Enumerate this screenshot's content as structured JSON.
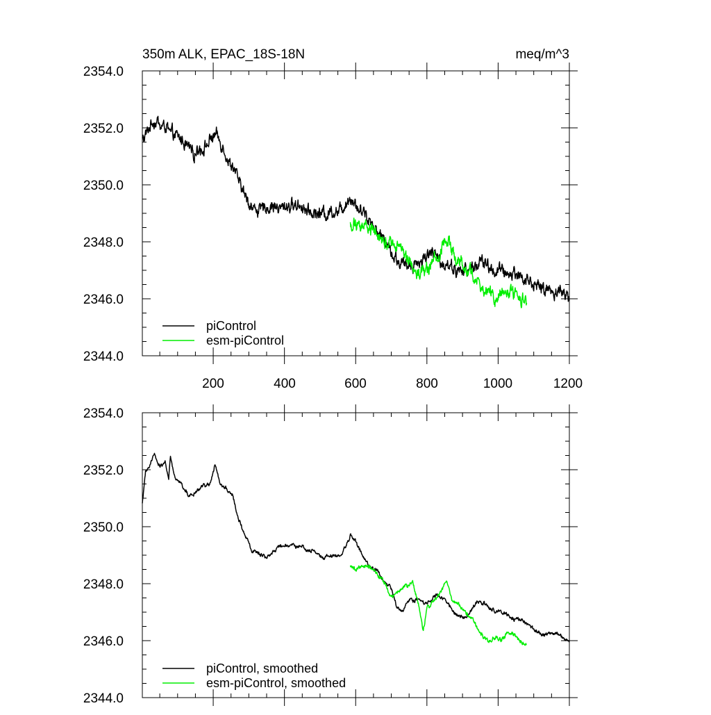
{
  "chart_data": [
    {
      "type": "line",
      "title": "350m ALK, EPAC_18S-18N",
      "units": "meq/m^3",
      "xlim": [
        1,
        1200
      ],
      "ylim": [
        2344,
        2354
      ],
      "xticks": [
        "200",
        "400",
        "600",
        "800",
        "1000",
        "1200"
      ],
      "yticks": [
        "2344.0",
        "2346.0",
        "2348.0",
        "2350.0",
        "2352.0",
        "2354.0"
      ],
      "legend_position": "bottom-left",
      "series": [
        {
          "name": "piControl",
          "color": "#000000",
          "x_start": 1,
          "x_end": 1200,
          "anchors": [
            [
              1,
              2351.6
            ],
            [
              15,
              2351.9
            ],
            [
              30,
              2352.2
            ],
            [
              60,
              2352.1
            ],
            [
              90,
              2351.7
            ],
            [
              120,
              2351.5
            ],
            [
              150,
              2351.2
            ],
            [
              180,
              2351.4
            ],
            [
              205,
              2351.7
            ],
            [
              230,
              2351.2
            ],
            [
              250,
              2350.6
            ],
            [
              265,
              2350.3
            ],
            [
              280,
              2349.9
            ],
            [
              300,
              2349.3
            ],
            [
              330,
              2349.1
            ],
            [
              370,
              2349.2
            ],
            [
              420,
              2349.3
            ],
            [
              460,
              2349.2
            ],
            [
              500,
              2349.0
            ],
            [
              540,
              2349.1
            ],
            [
              565,
              2349.3
            ],
            [
              585,
              2349.6
            ],
            [
              600,
              2349.3
            ],
            [
              630,
              2348.9
            ],
            [
              660,
              2348.5
            ],
            [
              690,
              2347.9
            ],
            [
              720,
              2347.2
            ],
            [
              750,
              2347.1
            ],
            [
              780,
              2347.3
            ],
            [
              810,
              2347.6
            ],
            [
              840,
              2347.4
            ],
            [
              870,
              2347.1
            ],
            [
              900,
              2346.9
            ],
            [
              930,
              2347.1
            ],
            [
              960,
              2347.3
            ],
            [
              990,
              2347.0
            ],
            [
              1020,
              2347.0
            ],
            [
              1050,
              2346.9
            ],
            [
              1080,
              2346.7
            ],
            [
              1110,
              2346.4
            ],
            [
              1140,
              2346.3
            ],
            [
              1170,
              2346.3
            ],
            [
              1200,
              2346.0
            ]
          ],
          "noise_amplitude": 0.6
        },
        {
          "name": "esm-piControl",
          "color": "#00ee00",
          "x_start": 585,
          "x_end": 1080,
          "anchors": [
            [
              585,
              2348.6
            ],
            [
              600,
              2348.5
            ],
            [
              630,
              2348.5
            ],
            [
              660,
              2348.3
            ],
            [
              690,
              2348.0
            ],
            [
              720,
              2347.8
            ],
            [
              750,
              2347.3
            ],
            [
              780,
              2346.8
            ],
            [
              810,
              2347.3
            ],
            [
              840,
              2347.7
            ],
            [
              860,
              2348.2
            ],
            [
              880,
              2347.4
            ],
            [
              910,
              2347.1
            ],
            [
              930,
              2346.8
            ],
            [
              960,
              2346.2
            ],
            [
              990,
              2346.0
            ],
            [
              1020,
              2346.2
            ],
            [
              1050,
              2346.2
            ],
            [
              1080,
              2345.8
            ]
          ],
          "noise_amplitude": 0.65
        }
      ]
    },
    {
      "type": "line",
      "xlim": [
        1,
        1200
      ],
      "ylim": [
        2344,
        2354
      ],
      "yticks": [
        "2344.0",
        "2346.0",
        "2348.0",
        "2350.0",
        "2352.0",
        "2354.0"
      ],
      "legend_position": "bottom-left",
      "series": [
        {
          "name": "piControl, smoothed",
          "color": "#000000",
          "x_start": 1,
          "x_end": 1200,
          "anchors": [
            [
              1,
              2350.8
            ],
            [
              10,
              2351.9
            ],
            [
              20,
              2352.1
            ],
            [
              35,
              2352.5
            ],
            [
              50,
              2352.1
            ],
            [
              65,
              2352.3
            ],
            [
              75,
              2351.7
            ],
            [
              80,
              2352.5
            ],
            [
              90,
              2351.8
            ],
            [
              110,
              2351.5
            ],
            [
              130,
              2351.1
            ],
            [
              150,
              2351.2
            ],
            [
              170,
              2351.4
            ],
            [
              190,
              2351.5
            ],
            [
              205,
              2352.2
            ],
            [
              220,
              2351.5
            ],
            [
              240,
              2351.3
            ],
            [
              255,
              2351.1
            ],
            [
              270,
              2350.3
            ],
            [
              290,
              2349.7
            ],
            [
              310,
              2349.2
            ],
            [
              330,
              2349.0
            ],
            [
              350,
              2348.9
            ],
            [
              370,
              2349.1
            ],
            [
              390,
              2349.3
            ],
            [
              420,
              2349.3
            ],
            [
              450,
              2349.3
            ],
            [
              480,
              2349.1
            ],
            [
              510,
              2348.9
            ],
            [
              540,
              2349.0
            ],
            [
              560,
              2349.1
            ],
            [
              570,
              2349.3
            ],
            [
              585,
              2349.7
            ],
            [
              600,
              2349.5
            ],
            [
              620,
              2349.0
            ],
            [
              640,
              2348.6
            ],
            [
              660,
              2348.5
            ],
            [
              680,
              2348.1
            ],
            [
              700,
              2347.8
            ],
            [
              715,
              2347.2
            ],
            [
              730,
              2347.0
            ],
            [
              750,
              2347.4
            ],
            [
              770,
              2347.4
            ],
            [
              800,
              2347.3
            ],
            [
              830,
              2347.6
            ],
            [
              850,
              2347.4
            ],
            [
              870,
              2347.1
            ],
            [
              885,
              2346.9
            ],
            [
              900,
              2346.8
            ],
            [
              920,
              2347.0
            ],
            [
              940,
              2347.4
            ],
            [
              960,
              2347.3
            ],
            [
              980,
              2347.1
            ],
            [
              1000,
              2347.0
            ],
            [
              1020,
              2347.0
            ],
            [
              1040,
              2346.8
            ],
            [
              1060,
              2346.8
            ],
            [
              1080,
              2346.6
            ],
            [
              1100,
              2346.4
            ],
            [
              1130,
              2346.2
            ],
            [
              1160,
              2346.3
            ],
            [
              1180,
              2346.1
            ],
            [
              1200,
              2346.0
            ]
          ],
          "noise_amplitude": 0.18
        },
        {
          "name": "esm-piControl, smoothed",
          "color": "#00ee00",
          "x_start": 585,
          "x_end": 1080,
          "anchors": [
            [
              585,
              2348.6
            ],
            [
              600,
              2348.5
            ],
            [
              620,
              2348.6
            ],
            [
              640,
              2348.6
            ],
            [
              660,
              2348.3
            ],
            [
              680,
              2348.0
            ],
            [
              700,
              2347.5
            ],
            [
              720,
              2347.7
            ],
            [
              740,
              2347.9
            ],
            [
              760,
              2348.0
            ],
            [
              780,
              2347.1
            ],
            [
              790,
              2346.4
            ],
            [
              800,
              2347.1
            ],
            [
              820,
              2347.4
            ],
            [
              840,
              2347.7
            ],
            [
              855,
              2348.2
            ],
            [
              870,
              2347.4
            ],
            [
              890,
              2347.3
            ],
            [
              910,
              2347.0
            ],
            [
              930,
              2346.7
            ],
            [
              950,
              2346.3
            ],
            [
              970,
              2346.0
            ],
            [
              990,
              2346.1
            ],
            [
              1010,
              2346.0
            ],
            [
              1030,
              2346.3
            ],
            [
              1050,
              2346.1
            ],
            [
              1070,
              2345.9
            ],
            [
              1080,
              2345.8
            ]
          ],
          "noise_amplitude": 0.2
        }
      ]
    }
  ]
}
